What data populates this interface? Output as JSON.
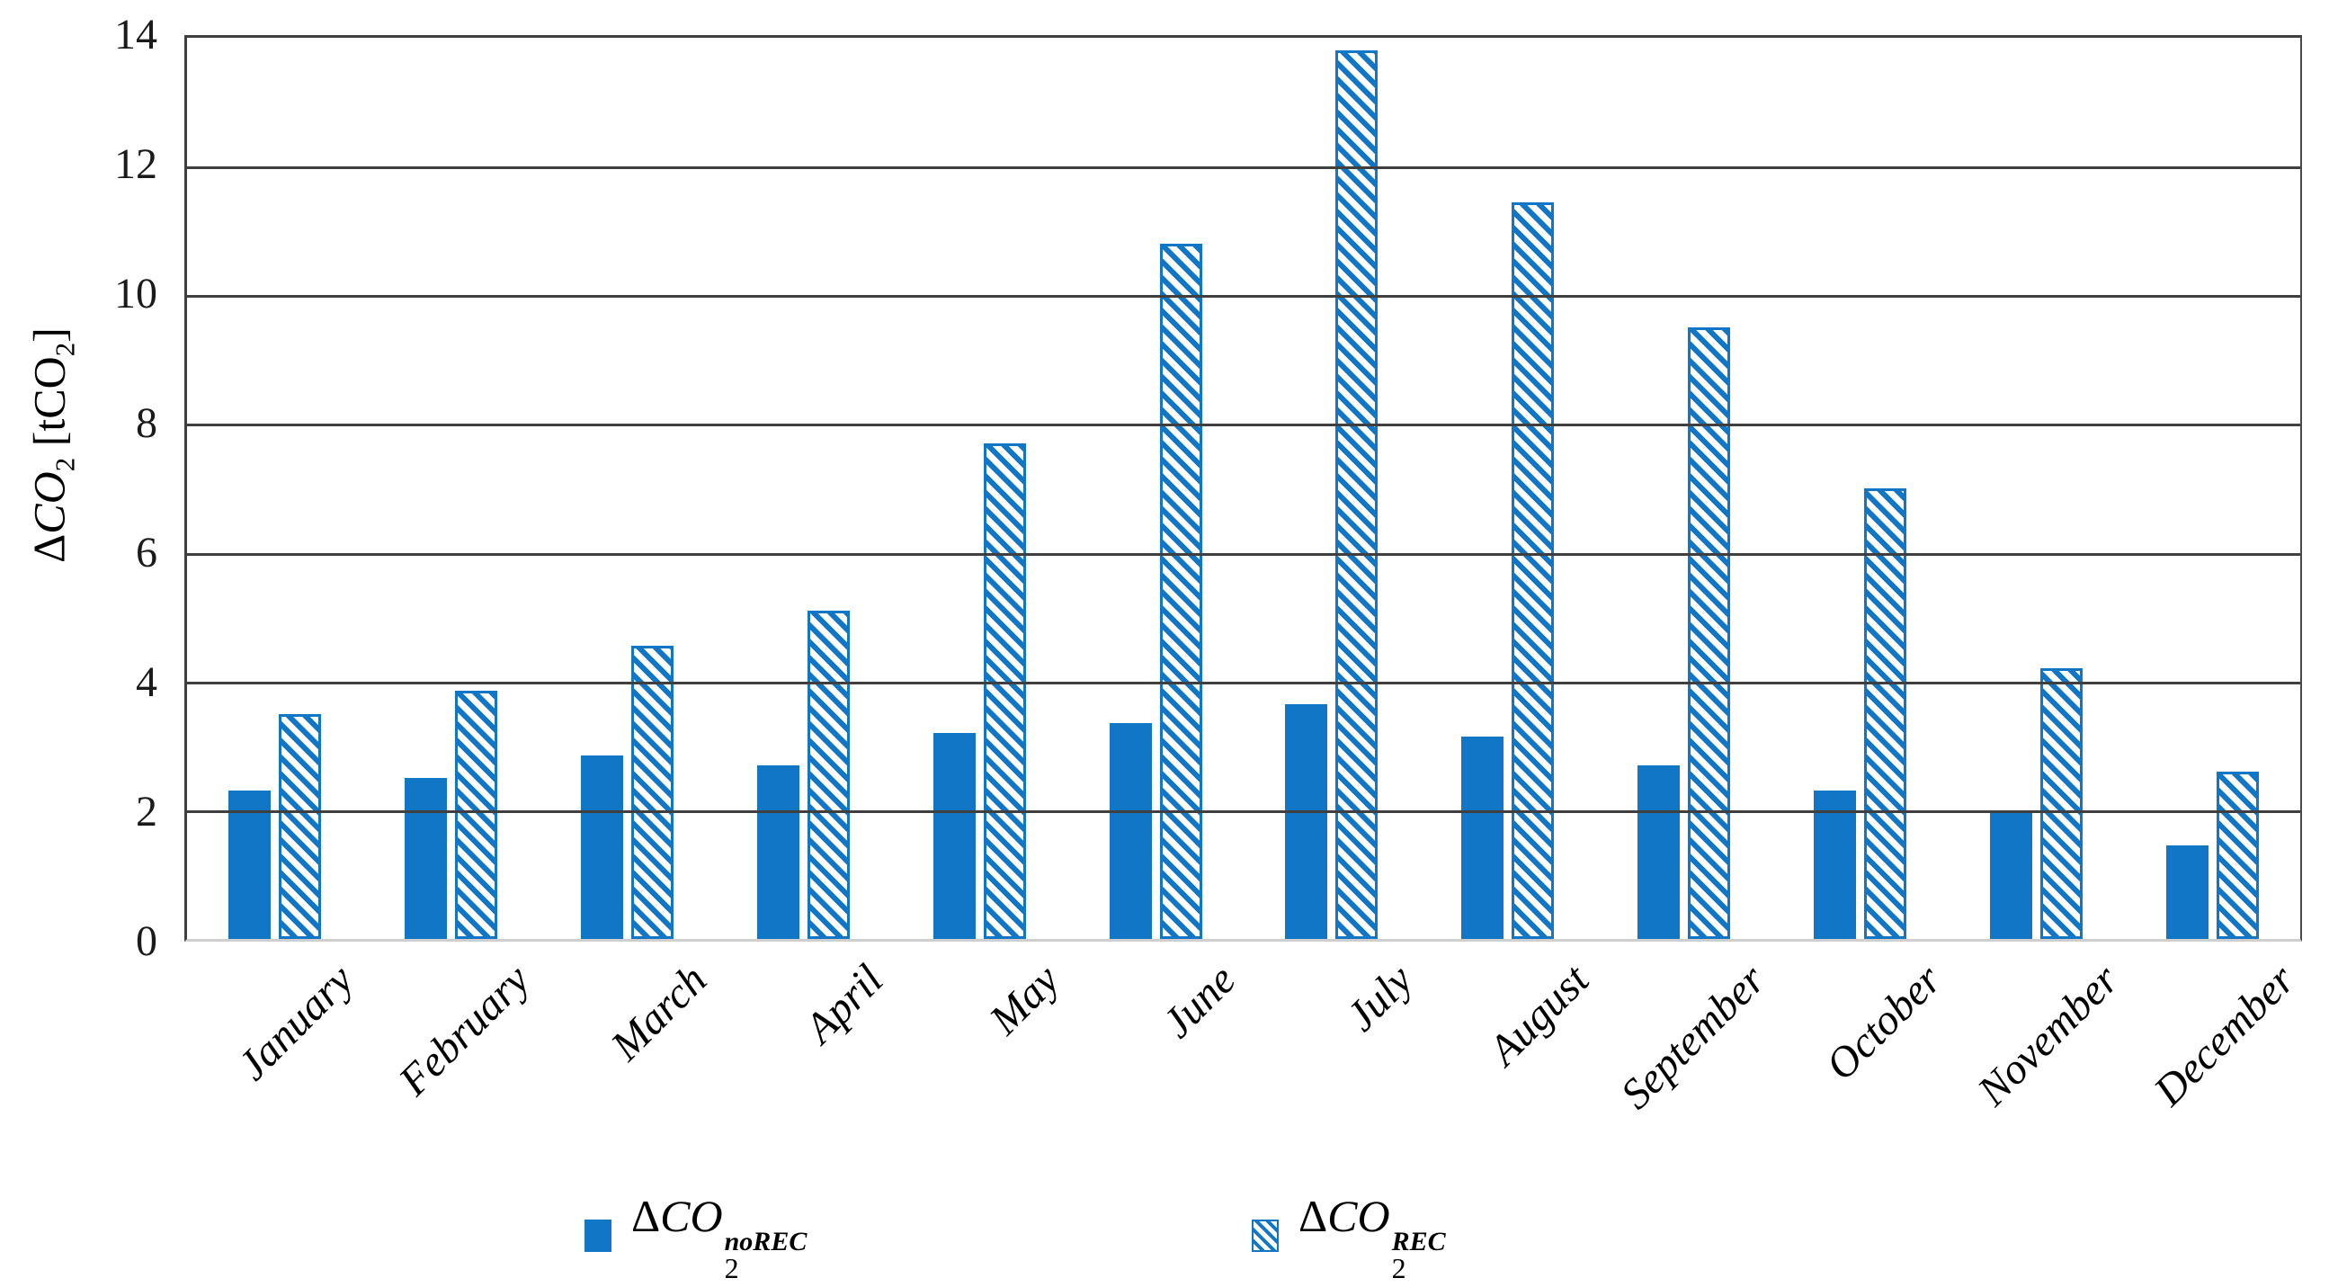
{
  "figure": {
    "background": "#ffffff",
    "bar_color": "#1276c6",
    "grid_color": "#3f3f3f",
    "bottom_axis_color": "#cfcfcf",
    "text_color": "#1a1a1a"
  },
  "axes": {
    "y": {
      "title_delta": "Δ",
      "title_letters": "CO",
      "title_sub": "2",
      "title_unit_pre": "[tCO",
      "title_unit_sub": "2",
      "title_unit_post": "]",
      "ticks": [
        "0",
        "2",
        "4",
        "6",
        "8",
        "10",
        "12",
        "14"
      ],
      "min": 0,
      "max": 14,
      "step": 2
    }
  },
  "legend": {
    "items": [
      {
        "marker": "solid",
        "delta": "Δ",
        "letters": "CO",
        "sub": "2",
        "sup": "noREC"
      },
      {
        "marker": "hatched",
        "delta": "Δ",
        "letters": "CO",
        "sub": "2",
        "sup": "REC"
      }
    ]
  },
  "chart_data": {
    "type": "bar",
    "title": "",
    "xlabel": "",
    "ylabel": "ΔCO2 [tCO2]",
    "ylim": [
      0,
      14
    ],
    "ytick_step": 2,
    "grid": "horizontal",
    "legend_position": "bottom",
    "categories": [
      "January",
      "February",
      "March",
      "April",
      "May",
      "June",
      "July",
      "August",
      "September",
      "October",
      "November",
      "December"
    ],
    "series": [
      {
        "name": "ΔCO2^noREC",
        "style": "solid",
        "values": [
          2.3,
          2.5,
          2.85,
          2.7,
          3.2,
          3.35,
          3.65,
          3.15,
          2.7,
          2.3,
          2.0,
          1.45
        ]
      },
      {
        "name": "ΔCO2^REC",
        "style": "hatched",
        "values": [
          3.5,
          3.85,
          4.55,
          5.1,
          7.7,
          10.8,
          13.8,
          11.45,
          9.5,
          7.0,
          4.2,
          2.6
        ]
      }
    ]
  }
}
